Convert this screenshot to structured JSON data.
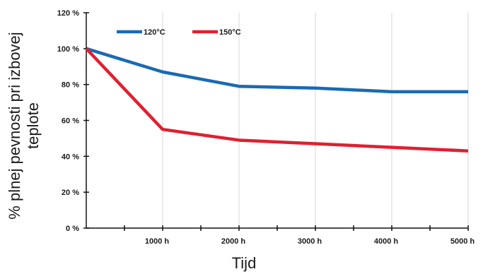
{
  "chart_data": {
    "type": "line",
    "xlabel": "Tijd",
    "ylabel": "% plnej pevnosti pri izbovej teplote",
    "ylabel_lines": [
      "% plnej pevnosti pri izbovej",
      "teplote"
    ],
    "xlim": [
      0,
      5000
    ],
    "ylim": [
      0,
      120
    ],
    "x_ticks": [
      1000,
      2000,
      3000,
      4000,
      5000
    ],
    "x_tick_labels": [
      "1000 h",
      "2000 h",
      "3000 h",
      "4000 h",
      "5000 h"
    ],
    "y_ticks": [
      0,
      20,
      40,
      60,
      80,
      100,
      120
    ],
    "y_tick_labels": [
      "0 %",
      "20 %",
      "40 %",
      "60 %",
      "80 %",
      "100 %",
      "120 %"
    ],
    "grid": "vertical",
    "legend_position": "top-left",
    "series": [
      {
        "name": "120°C",
        "color": "#1a6ab4",
        "x": [
          0,
          1000,
          2000,
          3000,
          4000,
          5000
        ],
        "values": [
          100,
          87,
          79,
          78,
          76,
          76
        ]
      },
      {
        "name": "150°C",
        "color": "#e02030",
        "x": [
          0,
          1000,
          2000,
          3000,
          4000,
          5000
        ],
        "values": [
          100,
          55,
          49,
          47,
          45,
          43
        ]
      }
    ]
  }
}
